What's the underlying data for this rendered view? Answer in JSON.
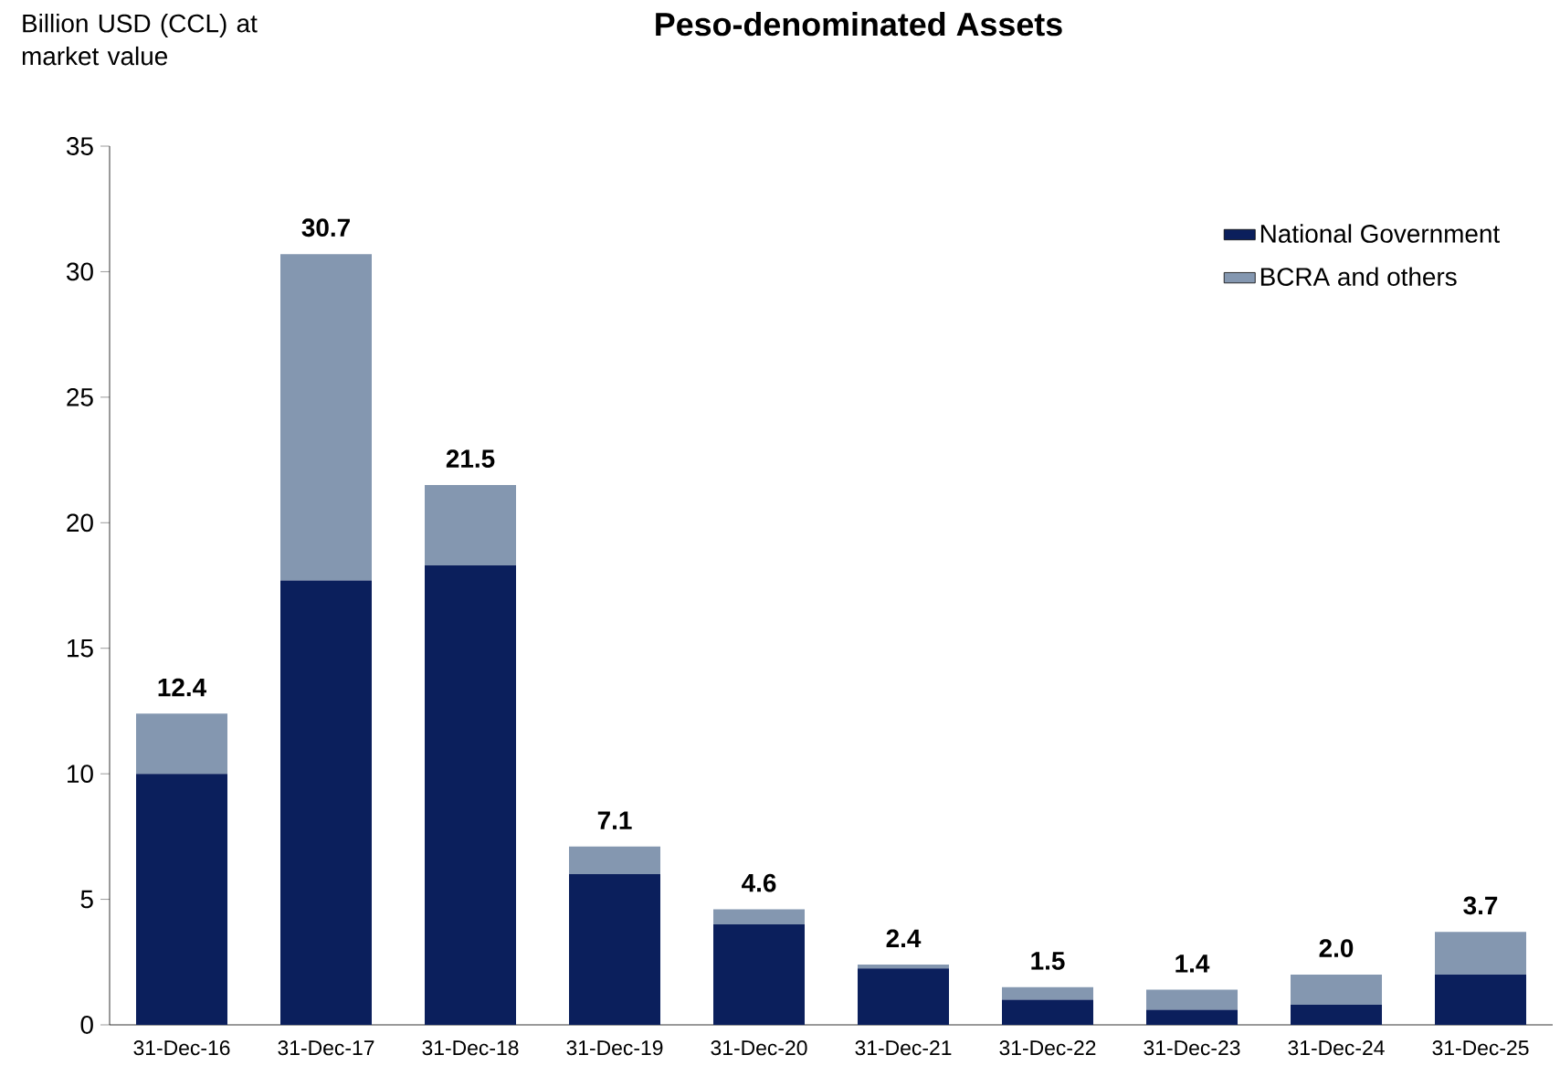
{
  "chart_data": {
    "type": "bar",
    "title": "Peso-denominated Assets",
    "ylabel": "Billion USD (CCL) at market value",
    "categories": [
      "31-Dec-16",
      "31-Dec-17",
      "31-Dec-18",
      "31-Dec-19",
      "31-Dec-20",
      "31-Dec-21",
      "31-Dec-22",
      "31-Dec-23",
      "31-Dec-24",
      "31-Dec-25"
    ],
    "stacked": true,
    "series": [
      {
        "name": "National Government",
        "color": "#0b1f5c",
        "values": [
          10.0,
          17.7,
          18.3,
          6.0,
          4.0,
          2.25,
          1.0,
          0.6,
          0.8,
          2.0
        ]
      },
      {
        "name": "BCRA and others",
        "color": "#8497b0",
        "values": [
          2.4,
          13.0,
          3.2,
          1.1,
          0.6,
          0.15,
          0.5,
          0.8,
          1.2,
          1.7
        ]
      }
    ],
    "totals": [
      "12.4",
      "30.7",
      "21.5",
      "7.1",
      "4.6",
      "2.4",
      "1.5",
      "1.4",
      "2.0",
      "3.7"
    ],
    "ylim": [
      0,
      35
    ],
    "yticks": [
      0,
      5,
      10,
      15,
      20,
      25,
      30,
      35
    ],
    "legend": "top right",
    "grid": false
  }
}
